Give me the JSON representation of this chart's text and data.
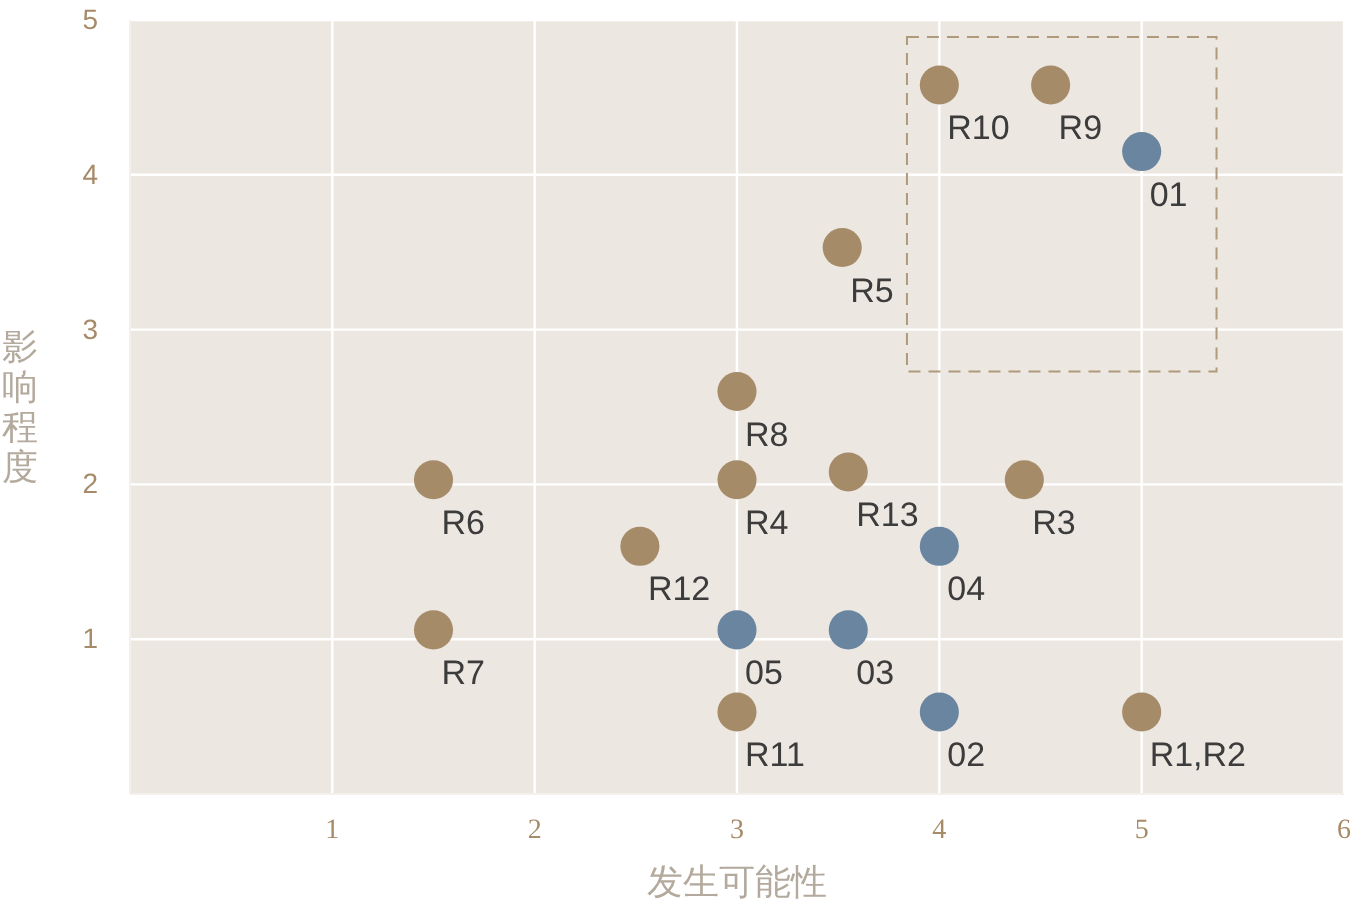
{
  "chart_data": {
    "type": "scatter",
    "xlabel": "发生可能性",
    "ylabel": "影响程度",
    "xlim": [
      0,
      6
    ],
    "ylim": [
      0,
      5
    ],
    "xticks": [
      1,
      2,
      3,
      4,
      5,
      6
    ],
    "yticks": [
      1,
      2,
      3,
      4,
      5
    ],
    "grid": true,
    "marker": "circle",
    "series": [
      {
        "color": "#a68b69",
        "x": [
          4,
          4.55,
          3.52,
          3,
          1.5,
          3,
          3.55,
          4.42,
          2.52,
          1.5,
          3,
          5
        ],
        "values": [
          4.58,
          4.58,
          3.53,
          2.6,
          2.03,
          2.03,
          2.08,
          2.03,
          1.6,
          1.06,
          0.53,
          0.53
        ]
      },
      {
        "color": "#6a85a0",
        "x": [
          5,
          4,
          3,
          3.55,
          4
        ],
        "values": [
          4.15,
          1.6,
          1.06,
          1.06,
          0.53
        ]
      }
    ],
    "annotations": [
      {
        "text": "R10",
        "x": 4,
        "y": 4.58
      },
      {
        "text": "R9",
        "x": 4.55,
        "y": 4.58
      },
      {
        "text": "R5",
        "x": 3.52,
        "y": 3.53
      },
      {
        "text": "R8",
        "x": 3,
        "y": 2.6
      },
      {
        "text": "R6",
        "x": 1.5,
        "y": 2.03
      },
      {
        "text": "R4",
        "x": 3,
        "y": 2.03
      },
      {
        "text": "R13",
        "x": 3.55,
        "y": 2.08
      },
      {
        "text": "R3",
        "x": 4.42,
        "y": 2.03
      },
      {
        "text": "R12",
        "x": 2.52,
        "y": 1.6
      },
      {
        "text": "R7",
        "x": 1.5,
        "y": 1.06
      },
      {
        "text": "R11",
        "x": 3,
        "y": 0.53
      },
      {
        "text": "R1,R2",
        "x": 5,
        "y": 0.53
      },
      {
        "text": "01",
        "x": 5,
        "y": 4.15
      },
      {
        "text": "04",
        "x": 4,
        "y": 1.6
      },
      {
        "text": "05",
        "x": 3,
        "y": 1.06
      },
      {
        "text": "03",
        "x": 3.55,
        "y": 1.06
      },
      {
        "text": "02",
        "x": 4,
        "y": 0.53
      }
    ]
  }
}
